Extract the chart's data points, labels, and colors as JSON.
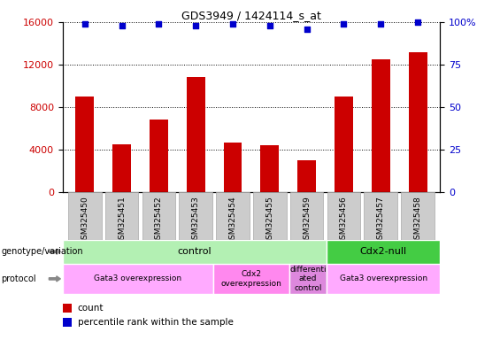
{
  "title": "GDS3949 / 1424114_s_at",
  "samples": [
    "GSM325450",
    "GSM325451",
    "GSM325452",
    "GSM325453",
    "GSM325454",
    "GSM325455",
    "GSM325459",
    "GSM325456",
    "GSM325457",
    "GSM325458"
  ],
  "counts": [
    9000,
    4500,
    6800,
    10800,
    4700,
    4400,
    3000,
    9000,
    12500,
    13200
  ],
  "percentile_ranks": [
    99,
    98,
    99,
    98,
    99,
    98,
    96,
    99,
    99,
    100
  ],
  "ylim_left": [
    0,
    16000
  ],
  "ylim_right": [
    0,
    100
  ],
  "yticks_left": [
    0,
    4000,
    8000,
    12000,
    16000
  ],
  "yticks_right": [
    0,
    25,
    50,
    75,
    100
  ],
  "bar_color": "#cc0000",
  "dot_color": "#0000cc",
  "bar_width": 0.5,
  "genotype_groups": [
    {
      "label": "control",
      "start": 0,
      "end": 7,
      "color": "#b3f0b3"
    },
    {
      "label": "Cdx2-null",
      "start": 7,
      "end": 10,
      "color": "#44cc44"
    }
  ],
  "protocol_groups": [
    {
      "label": "Gata3 overexpression",
      "start": 0,
      "end": 4,
      "color": "#ffaaff"
    },
    {
      "label": "Cdx2\noverexpression",
      "start": 4,
      "end": 6,
      "color": "#ff88ee"
    },
    {
      "label": "differenti\nated\ncontrol",
      "start": 6,
      "end": 7,
      "color": "#dd88dd"
    },
    {
      "label": "Gata3 overexpression",
      "start": 7,
      "end": 10,
      "color": "#ffaaff"
    }
  ],
  "tick_bg_color": "#cccccc",
  "genotype_label": "genotype/variation",
  "protocol_label": "protocol",
  "legend_count_color": "#cc0000",
  "legend_dot_color": "#0000cc"
}
